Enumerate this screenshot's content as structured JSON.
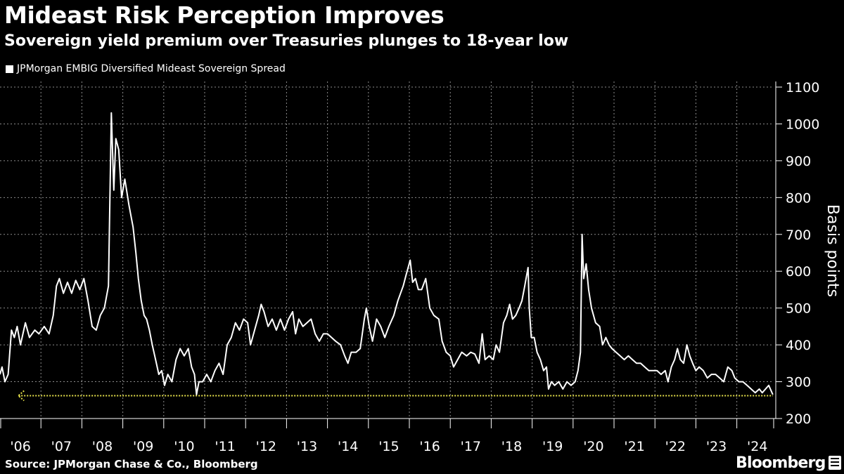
{
  "header": {
    "title": "Mideast Risk Perception Improves",
    "subtitle": "Sovereign yield premium over Treasuries plunges to 18-year low"
  },
  "footer": {
    "source": "Source: JPMorgan Chase & Co., Bloomberg",
    "brand": "Bloomberg"
  },
  "colors": {
    "background": "#000000",
    "line": "#ffffff",
    "reference": "#e6e14a",
    "grid": "#8c8c8c"
  },
  "chart_data": {
    "type": "line",
    "title": "Mideast Risk Perception Improves",
    "subtitle": "Sovereign yield premium over Treasuries plunges to 18-year low",
    "ylabel": "Basis points",
    "xlabel": "",
    "ylim": [
      200,
      1100
    ],
    "xlim": [
      2006.0,
      2024.9
    ],
    "yticks": [
      200,
      300,
      400,
      500,
      600,
      700,
      800,
      900,
      1000,
      1100
    ],
    "xticks": [
      {
        "x": 2006.5,
        "label": "'06"
      },
      {
        "x": 2007.5,
        "label": "'07"
      },
      {
        "x": 2008.5,
        "label": "'08"
      },
      {
        "x": 2009.5,
        "label": "'09"
      },
      {
        "x": 2010.5,
        "label": "'10"
      },
      {
        "x": 2011.5,
        "label": "'11"
      },
      {
        "x": 2012.5,
        "label": "'12"
      },
      {
        "x": 2013.5,
        "label": "'13"
      },
      {
        "x": 2014.5,
        "label": "'14"
      },
      {
        "x": 2015.5,
        "label": "'15"
      },
      {
        "x": 2016.5,
        "label": "'16"
      },
      {
        "x": 2017.5,
        "label": "'17"
      },
      {
        "x": 2018.5,
        "label": "'18"
      },
      {
        "x": 2019.5,
        "label": "'19"
      },
      {
        "x": 2020.5,
        "label": "'20"
      },
      {
        "x": 2021.5,
        "label": "'21"
      },
      {
        "x": 2022.5,
        "label": "'22"
      },
      {
        "x": 2023.5,
        "label": "'23"
      },
      {
        "x": 2024.5,
        "label": "'24"
      }
    ],
    "grid": true,
    "legend_position": "top-left",
    "series": [
      {
        "name": "JPMorgan EMBIG Diversified Mideast Sovereign Spread",
        "points": [
          [
            2006.0,
            320
          ],
          [
            2006.05,
            340
          ],
          [
            2006.12,
            300
          ],
          [
            2006.2,
            320
          ],
          [
            2006.28,
            440
          ],
          [
            2006.35,
            420
          ],
          [
            2006.42,
            450
          ],
          [
            2006.5,
            400
          ],
          [
            2006.62,
            460
          ],
          [
            2006.72,
            420
          ],
          [
            2006.85,
            440
          ],
          [
            2006.95,
            430
          ],
          [
            2007.08,
            450
          ],
          [
            2007.2,
            430
          ],
          [
            2007.3,
            480
          ],
          [
            2007.38,
            560
          ],
          [
            2007.45,
            580
          ],
          [
            2007.55,
            540
          ],
          [
            2007.65,
            570
          ],
          [
            2007.75,
            540
          ],
          [
            2007.85,
            575
          ],
          [
            2007.95,
            550
          ],
          [
            2008.05,
            580
          ],
          [
            2008.15,
            520
          ],
          [
            2008.25,
            450
          ],
          [
            2008.35,
            440
          ],
          [
            2008.45,
            480
          ],
          [
            2008.55,
            500
          ],
          [
            2008.65,
            560
          ],
          [
            2008.72,
            1030
          ],
          [
            2008.78,
            820
          ],
          [
            2008.83,
            960
          ],
          [
            2008.9,
            930
          ],
          [
            2008.97,
            800
          ],
          [
            2009.05,
            850
          ],
          [
            2009.15,
            780
          ],
          [
            2009.25,
            720
          ],
          [
            2009.32,
            650
          ],
          [
            2009.38,
            580
          ],
          [
            2009.45,
            520
          ],
          [
            2009.52,
            480
          ],
          [
            2009.58,
            470
          ],
          [
            2009.65,
            440
          ],
          [
            2009.72,
            400
          ],
          [
            2009.8,
            360
          ],
          [
            2009.88,
            320
          ],
          [
            2009.95,
            330
          ],
          [
            2010.02,
            290
          ],
          [
            2010.1,
            320
          ],
          [
            2010.2,
            300
          ],
          [
            2010.3,
            360
          ],
          [
            2010.4,
            390
          ],
          [
            2010.5,
            370
          ],
          [
            2010.6,
            390
          ],
          [
            2010.68,
            340
          ],
          [
            2010.75,
            320
          ],
          [
            2010.8,
            265
          ],
          [
            2010.86,
            300
          ],
          [
            2010.95,
            300
          ],
          [
            2011.05,
            320
          ],
          [
            2011.15,
            300
          ],
          [
            2011.25,
            330
          ],
          [
            2011.35,
            350
          ],
          [
            2011.45,
            320
          ],
          [
            2011.55,
            400
          ],
          [
            2011.65,
            420
          ],
          [
            2011.75,
            460
          ],
          [
            2011.85,
            440
          ],
          [
            2011.95,
            470
          ],
          [
            2012.05,
            460
          ],
          [
            2012.12,
            400
          ],
          [
            2012.22,
            440
          ],
          [
            2012.32,
            480
          ],
          [
            2012.38,
            510
          ],
          [
            2012.45,
            490
          ],
          [
            2012.55,
            450
          ],
          [
            2012.65,
            470
          ],
          [
            2012.75,
            440
          ],
          [
            2012.85,
            470
          ],
          [
            2012.95,
            440
          ],
          [
            2013.05,
            470
          ],
          [
            2013.15,
            490
          ],
          [
            2013.22,
            430
          ],
          [
            2013.3,
            470
          ],
          [
            2013.4,
            450
          ],
          [
            2013.5,
            460
          ],
          [
            2013.6,
            470
          ],
          [
            2013.7,
            430
          ],
          [
            2013.8,
            410
          ],
          [
            2013.9,
            430
          ],
          [
            2014.0,
            430
          ],
          [
            2014.1,
            420
          ],
          [
            2014.2,
            410
          ],
          [
            2014.32,
            400
          ],
          [
            2014.42,
            370
          ],
          [
            2014.5,
            350
          ],
          [
            2014.58,
            380
          ],
          [
            2014.7,
            380
          ],
          [
            2014.8,
            390
          ],
          [
            2014.9,
            470
          ],
          [
            2014.95,
            500
          ],
          [
            2015.02,
            450
          ],
          [
            2015.1,
            410
          ],
          [
            2015.2,
            470
          ],
          [
            2015.3,
            450
          ],
          [
            2015.4,
            420
          ],
          [
            2015.5,
            450
          ],
          [
            2015.62,
            480
          ],
          [
            2015.72,
            520
          ],
          [
            2015.85,
            560
          ],
          [
            2015.92,
            590
          ],
          [
            2016.02,
            630
          ],
          [
            2016.08,
            570
          ],
          [
            2016.15,
            580
          ],
          [
            2016.22,
            550
          ],
          [
            2016.3,
            550
          ],
          [
            2016.4,
            580
          ],
          [
            2016.5,
            500
          ],
          [
            2016.6,
            480
          ],
          [
            2016.72,
            470
          ],
          [
            2016.8,
            410
          ],
          [
            2016.9,
            380
          ],
          [
            2017.0,
            370
          ],
          [
            2017.08,
            340
          ],
          [
            2017.18,
            360
          ],
          [
            2017.28,
            380
          ],
          [
            2017.4,
            370
          ],
          [
            2017.5,
            380
          ],
          [
            2017.6,
            375
          ],
          [
            2017.7,
            350
          ],
          [
            2017.78,
            430
          ],
          [
            2017.85,
            360
          ],
          [
            2017.95,
            370
          ],
          [
            2018.05,
            360
          ],
          [
            2018.12,
            400
          ],
          [
            2018.2,
            380
          ],
          [
            2018.3,
            460
          ],
          [
            2018.38,
            480
          ],
          [
            2018.45,
            510
          ],
          [
            2018.52,
            470
          ],
          [
            2018.6,
            480
          ],
          [
            2018.68,
            500
          ],
          [
            2018.75,
            520
          ],
          [
            2018.82,
            560
          ],
          [
            2018.9,
            610
          ],
          [
            2018.93,
            500
          ],
          [
            2018.98,
            420
          ],
          [
            2019.05,
            420
          ],
          [
            2019.12,
            380
          ],
          [
            2019.2,
            360
          ],
          [
            2019.28,
            330
          ],
          [
            2019.35,
            340
          ],
          [
            2019.4,
            280
          ],
          [
            2019.47,
            300
          ],
          [
            2019.55,
            290
          ],
          [
            2019.65,
            300
          ],
          [
            2019.75,
            280
          ],
          [
            2019.85,
            300
          ],
          [
            2019.95,
            290
          ],
          [
            2020.05,
            300
          ],
          [
            2020.12,
            330
          ],
          [
            2020.18,
            380
          ],
          [
            2020.22,
            700
          ],
          [
            2020.26,
            580
          ],
          [
            2020.32,
            620
          ],
          [
            2020.38,
            550
          ],
          [
            2020.45,
            500
          ],
          [
            2020.55,
            460
          ],
          [
            2020.65,
            450
          ],
          [
            2020.72,
            400
          ],
          [
            2020.8,
            420
          ],
          [
            2020.88,
            400
          ],
          [
            2020.95,
            390
          ],
          [
            2021.05,
            380
          ],
          [
            2021.15,
            370
          ],
          [
            2021.25,
            360
          ],
          [
            2021.35,
            370
          ],
          [
            2021.45,
            360
          ],
          [
            2021.55,
            350
          ],
          [
            2021.65,
            350
          ],
          [
            2021.75,
            340
          ],
          [
            2021.85,
            330
          ],
          [
            2021.95,
            330
          ],
          [
            2022.05,
            330
          ],
          [
            2022.15,
            320
          ],
          [
            2022.25,
            330
          ],
          [
            2022.32,
            300
          ],
          [
            2022.4,
            340
          ],
          [
            2022.48,
            360
          ],
          [
            2022.55,
            390
          ],
          [
            2022.62,
            360
          ],
          [
            2022.7,
            350
          ],
          [
            2022.78,
            400
          ],
          [
            2022.85,
            370
          ],
          [
            2022.92,
            350
          ],
          [
            2023.0,
            330
          ],
          [
            2023.08,
            340
          ],
          [
            2023.18,
            330
          ],
          [
            2023.28,
            310
          ],
          [
            2023.38,
            320
          ],
          [
            2023.48,
            320
          ],
          [
            2023.58,
            310
          ],
          [
            2023.68,
            300
          ],
          [
            2023.78,
            340
          ],
          [
            2023.88,
            330
          ],
          [
            2023.95,
            310
          ],
          [
            2024.05,
            300
          ],
          [
            2024.15,
            300
          ],
          [
            2024.25,
            290
          ],
          [
            2024.35,
            280
          ],
          [
            2024.45,
            270
          ],
          [
            2024.55,
            280
          ],
          [
            2024.62,
            270
          ],
          [
            2024.7,
            280
          ],
          [
            2024.78,
            290
          ],
          [
            2024.84,
            275
          ],
          [
            2024.88,
            265
          ]
        ]
      }
    ],
    "reference_line": {
      "y": 262,
      "x_start": 2006.45,
      "x_end": 2024.88,
      "style": "dotted"
    }
  }
}
